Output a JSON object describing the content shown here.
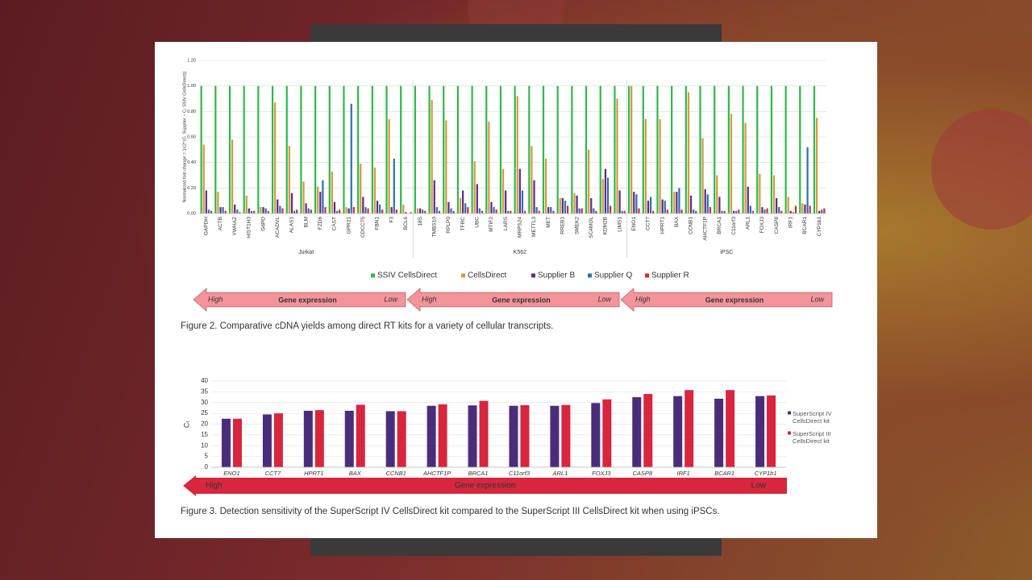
{
  "chart_data": [
    {
      "type": "bar",
      "y_label": "Normalized fold change = 1/(2^(Cₜ Supplier − Cₜ SSIV CellsDirect))",
      "groups": [
        {
          "name": "Jurkat",
          "categories": [
            "GAPDH",
            "ACTB",
            "YWHAZ",
            "HIST1H3",
            "G6PD",
            "ACADVL",
            "ALAS1",
            "BLM",
            "FZD6",
            "CAST",
            "GPR21",
            "CDCC75",
            "FBN1",
            "F3",
            "BCL6"
          ]
        },
        {
          "name": "K562",
          "categories": [
            "18S",
            "TMBS10",
            "RPLP0",
            "TFRC",
            "UBC",
            "MTIF2",
            "LARS",
            "MRPS24",
            "METTL3",
            "MET",
            "RREB1",
            "SMEK2",
            "SC4MOL",
            "KDM2B",
            "LIMS1"
          ]
        },
        {
          "name": "iPSC",
          "categories": [
            "ENO1",
            "CCT7",
            "HPRT1",
            "BAX",
            "CCNB1",
            "AHCTF1P",
            "BRCA1",
            "C11orf3",
            "ARL1",
            "FOXJ3",
            "CASP8",
            "IRF1",
            "BCAR1",
            "CYP1b1"
          ]
        }
      ],
      "series": [
        {
          "name": "SSIV CellsDirect",
          "color": "#2eb84b",
          "values": [
            1,
            1,
            1,
            1,
            1,
            1,
            1,
            1,
            1,
            1,
            1,
            1,
            1,
            1,
            1,
            1,
            1,
            1,
            1,
            1,
            1,
            1,
            1,
            1,
            1,
            1,
            1,
            1,
            1,
            1,
            1,
            1,
            1,
            1,
            1,
            1,
            1,
            1,
            1,
            1,
            1,
            1,
            1,
            1
          ]
        },
        {
          "name": "CellsDirect",
          "color": "#d49a3c",
          "values": [
            0.54,
            0.17,
            0.58,
            0.14,
            0.05,
            0.87,
            0.53,
            0.25,
            0.21,
            0.33,
            0.05,
            0.39,
            0.36,
            0.74,
            0.07,
            0.04,
            0.89,
            0.73,
            0.12,
            0.41,
            0.72,
            0.35,
            0.92,
            0.53,
            0.43,
            0.12,
            0.16,
            0.5,
            0.27,
            0.9,
            1.0,
            0.74,
            0.74,
            0.17,
            0.95,
            0.59,
            0.3,
            0.78,
            0.71,
            0.31,
            0.3,
            0.13,
            0.08,
            0.75
          ]
        },
        {
          "name": "Supplier B",
          "color": "#5b2b8a",
          "values": [
            0.18,
            0.05,
            0.07,
            0.04,
            0.05,
            0.11,
            0.16,
            0.08,
            0.17,
            0.09,
            0.04,
            0.13,
            0.1,
            0.05,
            0.01,
            0.04,
            0.26,
            0.09,
            0.18,
            0.23,
            0.09,
            0.18,
            0.35,
            0.26,
            0.05,
            0.12,
            0.14,
            0.12,
            0.35,
            0.18,
            0.17,
            0.1,
            0.11,
            0.17,
            0.14,
            0.19,
            0.13,
            0.02,
            0.21,
            0.05,
            0.12,
            0.02,
            0.07,
            0.02
          ]
        },
        {
          "name": "Supplier Q",
          "color": "#2c6fb5",
          "values": [
            0.03,
            0.05,
            0.03,
            0.02,
            0.04,
            0.06,
            0.02,
            0.04,
            0.26,
            0.02,
            0.86,
            0.05,
            0.07,
            0.43,
            0.0,
            0.03,
            0.05,
            0.04,
            0.08,
            0.04,
            0.05,
            0.02,
            0.18,
            0.05,
            0.05,
            0.1,
            0.04,
            0.04,
            0.28,
            0.02,
            0.15,
            0.13,
            0.1,
            0.2,
            0.03,
            0.15,
            0.02,
            0.02,
            0.06,
            0.03,
            0.05,
            0.01,
            0.52,
            0.03
          ]
        },
        {
          "name": "Supplier R",
          "color": "#d62b2b",
          "values": [
            0.02,
            0.02,
            0.01,
            0.02,
            0.02,
            0.04,
            0.03,
            0.03,
            0.05,
            0.03,
            0.05,
            0.04,
            0.03,
            0.03,
            0.01,
            0.02,
            0.02,
            0.02,
            0.05,
            0.02,
            0.03,
            0.02,
            0.02,
            0.02,
            0.02,
            0.06,
            0.04,
            0.02,
            0.06,
            0.02,
            0.04,
            0.02,
            0.03,
            0.03,
            0.02,
            0.05,
            0.02,
            0.03,
            0.02,
            0.04,
            0.02,
            0.06,
            0.06,
            0.04
          ]
        }
      ],
      "ylim": [
        0,
        1.2
      ],
      "yticks": [
        {
          "value": 0,
          "label": "0.00"
        },
        {
          "value": 0.2,
          "label": "0.20"
        },
        {
          "value": 0.4,
          "label": "0.40"
        },
        {
          "value": 0.6,
          "label": "0.60"
        },
        {
          "value": 0.8,
          "label": "0.80"
        },
        {
          "value": 1.0,
          "label": "1.00"
        },
        {
          "value": 1.2,
          "label": "1.20"
        }
      ],
      "grid": true,
      "expression_arrows": [
        {
          "high": "High",
          "label": "Gene expression",
          "low": "Low"
        },
        {
          "high": "High",
          "label": "Gene expression",
          "low": "Low"
        },
        {
          "high": "High",
          "label": "Gene expression",
          "low": "Low"
        }
      ],
      "caption": "Figure 2. Comparative cDNA yields among direct RT kits for a variety of cellular transcripts."
    },
    {
      "type": "bar",
      "y_label": "Cₜ",
      "categories": [
        "ENO1",
        "CCT7",
        "HPRT1",
        "BAX",
        "CCNB1",
        "AHCTF1P",
        "BRCA1",
        "C11orf3",
        "ARL1",
        "FOXJ3",
        "CASP8",
        "IRF1",
        "BCAR1",
        "CYP1b1"
      ],
      "series": [
        {
          "name": "SuperScript IV CellsDirect kit",
          "color": "#4a2d7a",
          "values": [
            22.5,
            24.5,
            26.2,
            26.2,
            26.0,
            28.5,
            28.7,
            28.5,
            28.5,
            29.8,
            32.5,
            33.0,
            31.8,
            33.0
          ]
        },
        {
          "name": "SuperScript III CellsDirect kit",
          "color": "#d7263d",
          "values": [
            22.5,
            25.0,
            26.5,
            29.0,
            26.0,
            29.2,
            30.8,
            28.8,
            28.9,
            31.5,
            34.0,
            35.8,
            35.8,
            33.3
          ]
        }
      ],
      "ylim": [
        0,
        40
      ],
      "yticks": [
        0,
        5,
        10,
        15,
        20,
        25,
        30,
        35,
        40
      ],
      "grid": true,
      "expression_arrows": [
        {
          "high": "High",
          "label": "Gene expression",
          "low": "Low"
        }
      ],
      "caption": "Figure 3. Detection sensitivity of the SuperScript IV CellsDirect kit compared to the SuperScript III CellsDirect kit when using iPSCs."
    }
  ]
}
